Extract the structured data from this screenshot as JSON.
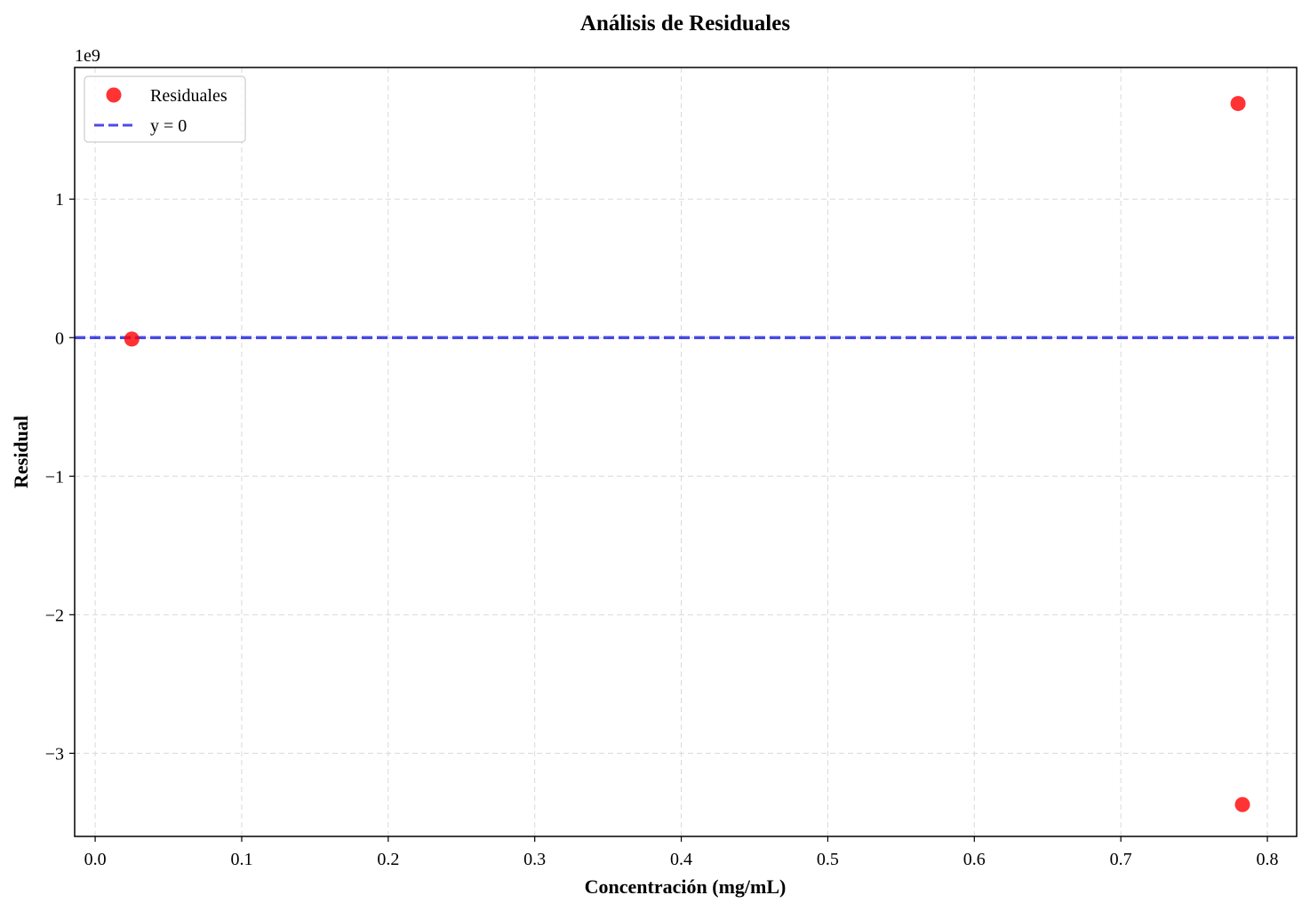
{
  "chart_data": {
    "type": "scatter",
    "title": "Análisis de Residuales",
    "xlabel": "Concentración (mg/mL)",
    "ylabel": "Residual",
    "y_offset_label": "1e9",
    "y_scale_factor": 1000000000,
    "xlim": [
      -0.014,
      0.82
    ],
    "ylim": [
      -3.6,
      1.95
    ],
    "x_ticks": [
      0.0,
      0.1,
      0.2,
      0.3,
      0.4,
      0.5,
      0.6,
      0.7,
      0.8
    ],
    "x_tick_labels": [
      "0.0",
      "0.1",
      "0.2",
      "0.3",
      "0.4",
      "0.5",
      "0.6",
      "0.7",
      "0.8"
    ],
    "y_ticks": [
      -3,
      -2,
      -1,
      0,
      1
    ],
    "y_tick_labels": [
      "−3",
      "−2",
      "−1",
      "0",
      "1"
    ],
    "grid": true,
    "legend_position": "top-left",
    "series": [
      {
        "name": "Residuales",
        "kind": "scatter",
        "color": "#ff0000",
        "points": [
          {
            "x": 0.025,
            "y": -0.01
          },
          {
            "x": 0.78,
            "y": 1.69
          },
          {
            "x": 0.783,
            "y": -3.37
          }
        ]
      },
      {
        "name": "y = 0",
        "kind": "hline",
        "color": "#0000dd",
        "style": "dashed",
        "y": 0
      }
    ]
  }
}
